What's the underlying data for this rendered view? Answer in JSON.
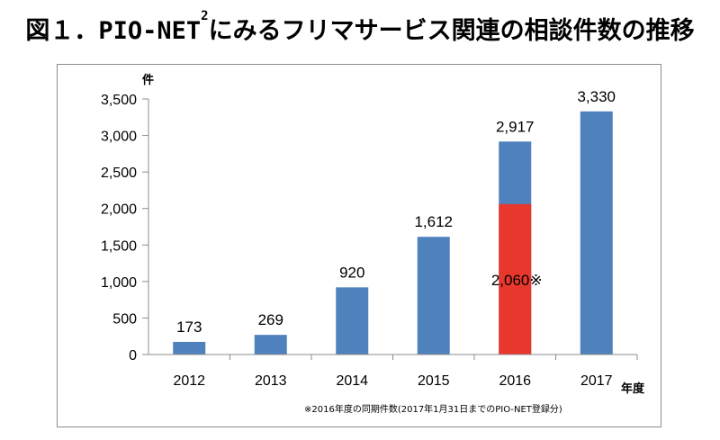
{
  "title_main": "図１．PIO-NET",
  "title_sup": "2",
  "title_rest": "にみるフリマサービス関連の相談件数の推移",
  "chart_data": {
    "type": "bar",
    "categories": [
      "2012",
      "2013",
      "2014",
      "2015",
      "2016",
      "2017"
    ],
    "series": [
      {
        "name": "相談件数",
        "values": [
          173,
          269,
          920,
          1612,
          2917,
          3330
        ],
        "color": "#4f81bd"
      },
      {
        "name": "同期件数",
        "values": [
          null,
          null,
          null,
          null,
          2060,
          null
        ],
        "color": "#e8382d"
      }
    ],
    "data_labels": [
      "173",
      "269",
      "920",
      "1,612",
      "2,917",
      "3,330"
    ],
    "highlight_label": "2,060※",
    "yticks": [
      0,
      500,
      1000,
      1500,
      2000,
      2500,
      3000,
      3500
    ],
    "ytick_labels": [
      "0",
      "500",
      "1,000",
      "1,500",
      "2,000",
      "2,500",
      "3,000",
      "3,500"
    ],
    "ylim": [
      0,
      3500
    ],
    "ylabel": "件",
    "xlabel": "年度",
    "note": "※2016年度の同期件数(2017年1月31日までのPIO-NET登録分)"
  }
}
